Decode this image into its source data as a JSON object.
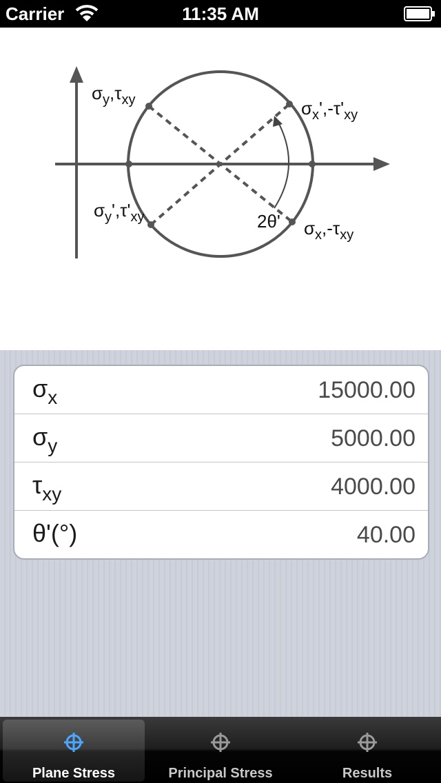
{
  "status_bar": {
    "carrier": "Carrier",
    "time": "11:35 AM"
  },
  "diagram": {
    "label_top_left_main": "σ",
    "label_top_left_sub1": "y",
    "label_top_left_sep": ",τ",
    "label_top_left_sub2": "xy",
    "label_top_right_main": "σ",
    "label_top_right_sub1": "x",
    "label_top_right_prime": "'",
    "label_top_right_sep": ",-τ'",
    "label_top_right_sub2": "xy",
    "label_bottom_left_main": "σ",
    "label_bottom_left_sub1": "y",
    "label_bottom_left_prime": "'",
    "label_bottom_left_sep": ",τ'",
    "label_bottom_left_sub2": "xy",
    "label_bottom_right_main": "σ",
    "label_bottom_right_sub1": "x",
    "label_bottom_right_sep": ",-τ",
    "label_bottom_right_sub2": "xy",
    "angle_label": "2θ'"
  },
  "inputs": [
    {
      "symbol": "σ",
      "subscript": "x",
      "value": "15000.00"
    },
    {
      "symbol": "σ",
      "subscript": "y",
      "value": "5000.00"
    },
    {
      "symbol": "τ",
      "subscript": "xy",
      "value": "4000.00"
    },
    {
      "symbol": "θ'(°)",
      "subscript": "",
      "value": "40.00"
    }
  ],
  "tabs": [
    {
      "label": "Plane Stress",
      "active": true
    },
    {
      "label": "Principal Stress",
      "active": false
    },
    {
      "label": "Results",
      "active": false
    }
  ],
  "colors": {
    "accent_active_icon": "#4aa8ff",
    "inactive_icon": "#9a9a9a"
  }
}
